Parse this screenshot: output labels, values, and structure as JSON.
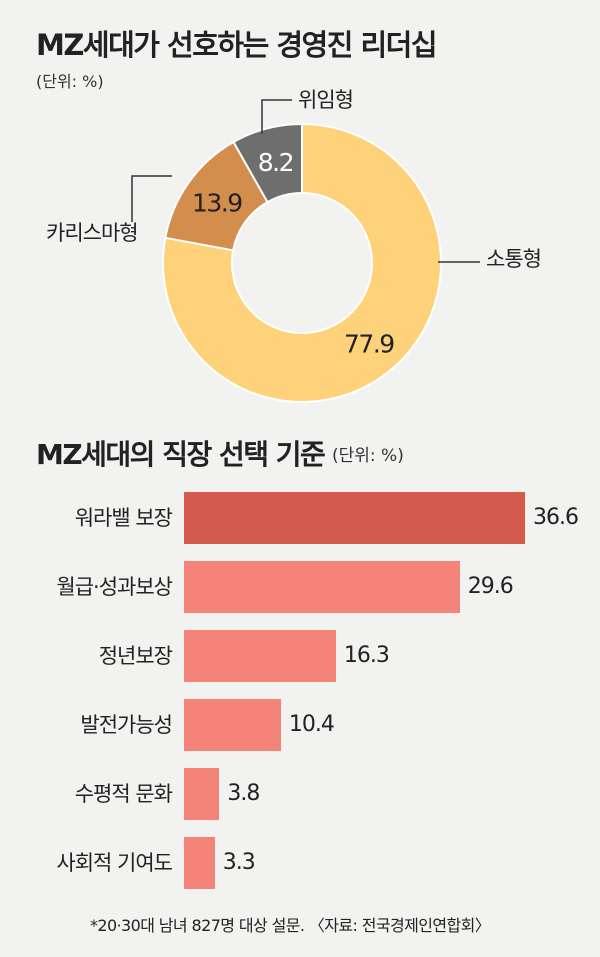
{
  "chart_data": [
    {
      "type": "pie",
      "title": "MZ세대가 선호하는 경영진 리더십",
      "unit_note": "(단위: %)",
      "slices": [
        {
          "name": "소통형",
          "value": 77.9,
          "value_label": "77.9",
          "color": "#fdd27a"
        },
        {
          "name": "카리스마형",
          "value": 13.9,
          "value_label": "13.9",
          "color": "#d38e4e"
        },
        {
          "name": "위임형",
          "value": 8.2,
          "value_label": "8.2",
          "color": "#6f6e6e"
        }
      ]
    },
    {
      "type": "bar",
      "orientation": "horizontal",
      "title": "MZ세대의 직장 선택 기준",
      "unit_note": "(단위: %)",
      "categories": [
        "워라밸 보장",
        "월급·성과보상",
        "정년보장",
        "발전가능성",
        "수평적 문화",
        "사회적 기여도"
      ],
      "values": [
        36.6,
        29.6,
        16.3,
        10.4,
        3.8,
        3.3
      ],
      "value_labels": [
        "36.6",
        "29.6",
        "16.3",
        "10.4",
        "3.8",
        "3.3"
      ],
      "colors": [
        "#d45a4e",
        "#f4837a",
        "#f4837a",
        "#f4837a",
        "#f4837a",
        "#f4837a"
      ]
    }
  ],
  "footnote": "*20·30대 남녀 827명 대상 설문. 〈자료: 전국경제인연합회〉"
}
